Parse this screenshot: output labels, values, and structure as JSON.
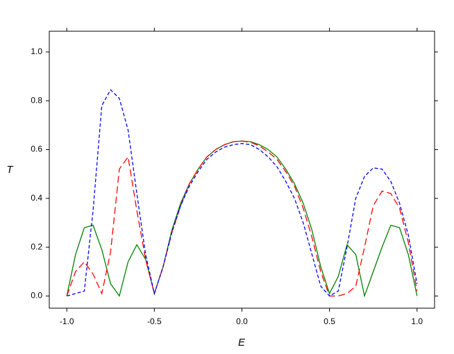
{
  "chart_data": {
    "type": "line",
    "xlabel": "E",
    "ylabel": "T",
    "x": [
      -1.0,
      -0.95,
      -0.9,
      -0.85,
      -0.8,
      -0.75,
      -0.7,
      -0.65,
      -0.6,
      -0.55,
      -0.5,
      -0.45,
      -0.4,
      -0.35,
      -0.3,
      -0.25,
      -0.2,
      -0.15,
      -0.1,
      -0.05,
      0.0,
      0.05,
      0.1,
      0.15,
      0.2,
      0.25,
      0.3,
      0.35,
      0.4,
      0.45,
      0.5,
      0.55,
      0.6,
      0.65,
      0.7,
      0.75,
      0.8,
      0.85,
      0.9,
      0.95,
      1.0
    ],
    "series": [
      {
        "color": "#008000",
        "dash": "solid",
        "values": [
          0,
          0.17,
          0.28,
          0.29,
          0.19,
          0.05,
          0.0,
          0.14,
          0.21,
          0.15,
          0.01,
          0.12,
          0.27,
          0.38,
          0.46,
          0.52,
          0.57,
          0.6,
          0.62,
          0.632,
          0.635,
          0.632,
          0.62,
          0.6,
          0.57,
          0.52,
          0.46,
          0.38,
          0.27,
          0.12,
          0.01,
          0.08,
          0.21,
          0.17,
          0.0,
          0.1,
          0.2,
          0.29,
          0.28,
          0.17,
          0.0
        ]
      },
      {
        "color": "#ff0000",
        "dash": "long",
        "values": [
          0,
          0.1,
          0.14,
          0.09,
          0.01,
          0.18,
          0.52,
          0.57,
          0.35,
          0.15,
          0.01,
          0.12,
          0.26,
          0.37,
          0.46,
          0.52,
          0.57,
          0.6,
          0.62,
          0.632,
          0.635,
          0.63,
          0.615,
          0.59,
          0.56,
          0.51,
          0.45,
          0.36,
          0.24,
          0.1,
          0.0,
          0.0,
          0.01,
          0.04,
          0.2,
          0.37,
          0.43,
          0.42,
          0.36,
          0.22,
          0.02
        ]
      },
      {
        "color": "#0000ff",
        "dash": "short",
        "values": [
          0,
          0.01,
          0.02,
          0.35,
          0.78,
          0.845,
          0.81,
          0.68,
          0.42,
          0.17,
          0.01,
          0.12,
          0.26,
          0.37,
          0.45,
          0.51,
          0.56,
          0.59,
          0.61,
          0.62,
          0.625,
          0.62,
          0.6,
          0.57,
          0.53,
          0.47,
          0.4,
          0.3,
          0.17,
          0.04,
          0.0,
          0.02,
          0.2,
          0.4,
          0.49,
          0.525,
          0.52,
          0.47,
          0.38,
          0.25,
          0.05
        ]
      }
    ],
    "xlim": [
      -1.1,
      1.1
    ],
    "ylim": [
      -0.05,
      1.085
    ],
    "xticks": [
      {
        "value": -1.0,
        "label": "-1.0"
      },
      {
        "value": -0.5,
        "label": "-0.5"
      },
      {
        "value": 0,
        "label": "0.0"
      },
      {
        "value": 0.5,
        "label": "0.5"
      },
      {
        "value": 1.0,
        "label": "1.0"
      }
    ],
    "yticks": [
      {
        "value": 0,
        "label": "0.0"
      },
      {
        "value": 0.2,
        "label": "0.2"
      },
      {
        "value": 0.4,
        "label": "0.4"
      },
      {
        "value": 0.6,
        "label": "0.6"
      },
      {
        "value": 0.8,
        "label": "0.8"
      },
      {
        "value": 1.0,
        "label": "1.0"
      }
    ],
    "grid": false
  }
}
